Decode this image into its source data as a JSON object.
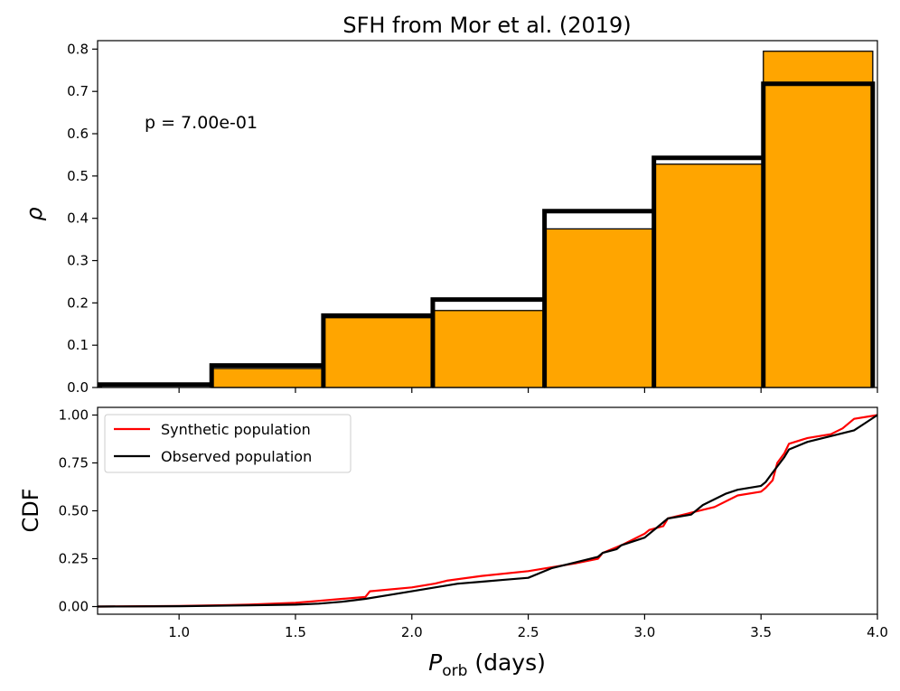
{
  "chart_data": [
    {
      "type": "bar",
      "title": "SFH from Mor et al. (2019)",
      "ylabel": "ρ",
      "xlim": [
        0.65,
        4.0
      ],
      "ylim": [
        0,
        0.82
      ],
      "yticks": [
        0.0,
        0.1,
        0.2,
        0.3,
        0.4,
        0.5,
        0.6,
        0.7,
        0.8
      ],
      "ytick_labels": [
        "0.0",
        "0.1",
        "0.2",
        "0.3",
        "0.4",
        "0.5",
        "0.6",
        "0.7",
        "0.8"
      ],
      "bin_edges": [
        0.66,
        1.14,
        1.62,
        2.09,
        2.57,
        3.04,
        3.51,
        3.98
      ],
      "series": [
        {
          "name": "Synthetic population",
          "style": "filled",
          "color": "#ffa500",
          "values": [
            0.0,
            0.045,
            0.165,
            0.182,
            0.375,
            0.528,
            0.795
          ]
        },
        {
          "name": "Observed population",
          "style": "step",
          "color": "#000000",
          "values": [
            0.007,
            0.052,
            0.17,
            0.208,
            0.417,
            0.543,
            0.718
          ]
        }
      ],
      "annotation": "p = 7.00e-01"
    },
    {
      "type": "line",
      "xlabel": "Porb (days)",
      "ylabel": "CDF",
      "xlim": [
        0.65,
        4.0
      ],
      "ylim": [
        -0.04,
        1.04
      ],
      "xticks": [
        1.0,
        1.5,
        2.0,
        2.5,
        3.0,
        3.5,
        4.0
      ],
      "xtick_labels": [
        "1.0",
        "1.5",
        "2.0",
        "2.5",
        "3.0",
        "3.5",
        "4.0"
      ],
      "yticks": [
        0.0,
        0.25,
        0.5,
        0.75,
        1.0
      ],
      "ytick_labels": [
        "0.00",
        "0.25",
        "0.50",
        "0.75",
        "1.00"
      ],
      "legend_position": "top-left",
      "series": [
        {
          "name": "Synthetic population",
          "color": "#ff0000",
          "x": [
            0.65,
            1.0,
            1.3,
            1.5,
            1.6,
            1.7,
            1.8,
            1.82,
            2.0,
            2.1,
            2.15,
            2.3,
            2.5,
            2.6,
            2.7,
            2.8,
            2.82,
            2.9,
            3.0,
            3.02,
            3.08,
            3.1,
            3.2,
            3.3,
            3.4,
            3.5,
            3.52,
            3.55,
            3.57,
            3.6,
            3.62,
            3.7,
            3.8,
            3.85,
            3.9,
            4.0
          ],
          "y": [
            0.0,
            0.003,
            0.01,
            0.02,
            0.03,
            0.04,
            0.05,
            0.08,
            0.1,
            0.12,
            0.135,
            0.16,
            0.185,
            0.205,
            0.225,
            0.25,
            0.28,
            0.32,
            0.38,
            0.4,
            0.42,
            0.46,
            0.49,
            0.52,
            0.58,
            0.6,
            0.62,
            0.66,
            0.75,
            0.8,
            0.85,
            0.88,
            0.9,
            0.93,
            0.98,
            1.0
          ]
        },
        {
          "name": "Observed population",
          "color": "#000000",
          "x": [
            0.65,
            1.0,
            1.3,
            1.5,
            1.6,
            1.7,
            1.8,
            1.9,
            2.0,
            2.1,
            2.2,
            2.3,
            2.4,
            2.5,
            2.6,
            2.7,
            2.8,
            2.82,
            2.88,
            2.9,
            3.0,
            3.05,
            3.1,
            3.2,
            3.25,
            3.3,
            3.35,
            3.4,
            3.45,
            3.5,
            3.52,
            3.55,
            3.6,
            3.62,
            3.7,
            3.8,
            3.9,
            3.95,
            4.0
          ],
          "y": [
            0.0,
            0.002,
            0.006,
            0.01,
            0.015,
            0.025,
            0.04,
            0.06,
            0.08,
            0.1,
            0.12,
            0.13,
            0.14,
            0.15,
            0.2,
            0.23,
            0.26,
            0.28,
            0.3,
            0.32,
            0.36,
            0.41,
            0.46,
            0.48,
            0.53,
            0.56,
            0.59,
            0.61,
            0.62,
            0.63,
            0.65,
            0.7,
            0.78,
            0.82,
            0.86,
            0.89,
            0.92,
            0.96,
            1.0
          ]
        }
      ]
    }
  ]
}
